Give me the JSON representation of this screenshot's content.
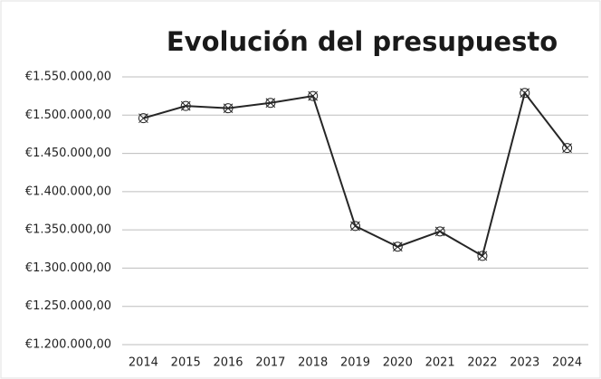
{
  "chart_data": {
    "type": "line",
    "title": "Evolución del presupuesto",
    "categories": [
      "2014",
      "2015",
      "2016",
      "2017",
      "2018",
      "2019",
      "2020",
      "2021",
      "2022",
      "2023",
      "2024"
    ],
    "series": [
      {
        "color": "#262626",
        "values": [
          1496000,
          1512000,
          1509000,
          1516000,
          1525000,
          1355000,
          1328000,
          1348000,
          1316000,
          1529000,
          1457000
        ]
      }
    ],
    "ylim": [
      1200000,
      1550000
    ],
    "yticks": [
      {
        "value": 1200000,
        "label": "€1.200.000,00"
      },
      {
        "value": 1250000,
        "label": "€1.250.000,00"
      },
      {
        "value": 1300000,
        "label": "€1.300.000,00"
      },
      {
        "value": 1350000,
        "label": "€1.350.000,00"
      },
      {
        "value": 1400000,
        "label": "€1.400.000,00"
      },
      {
        "value": 1450000,
        "label": "€1.450.000,00"
      },
      {
        "value": 1500000,
        "label": "€1.500.000,00"
      },
      {
        "value": 1550000,
        "label": "€1.550.000,00"
      }
    ],
    "grid": true
  }
}
